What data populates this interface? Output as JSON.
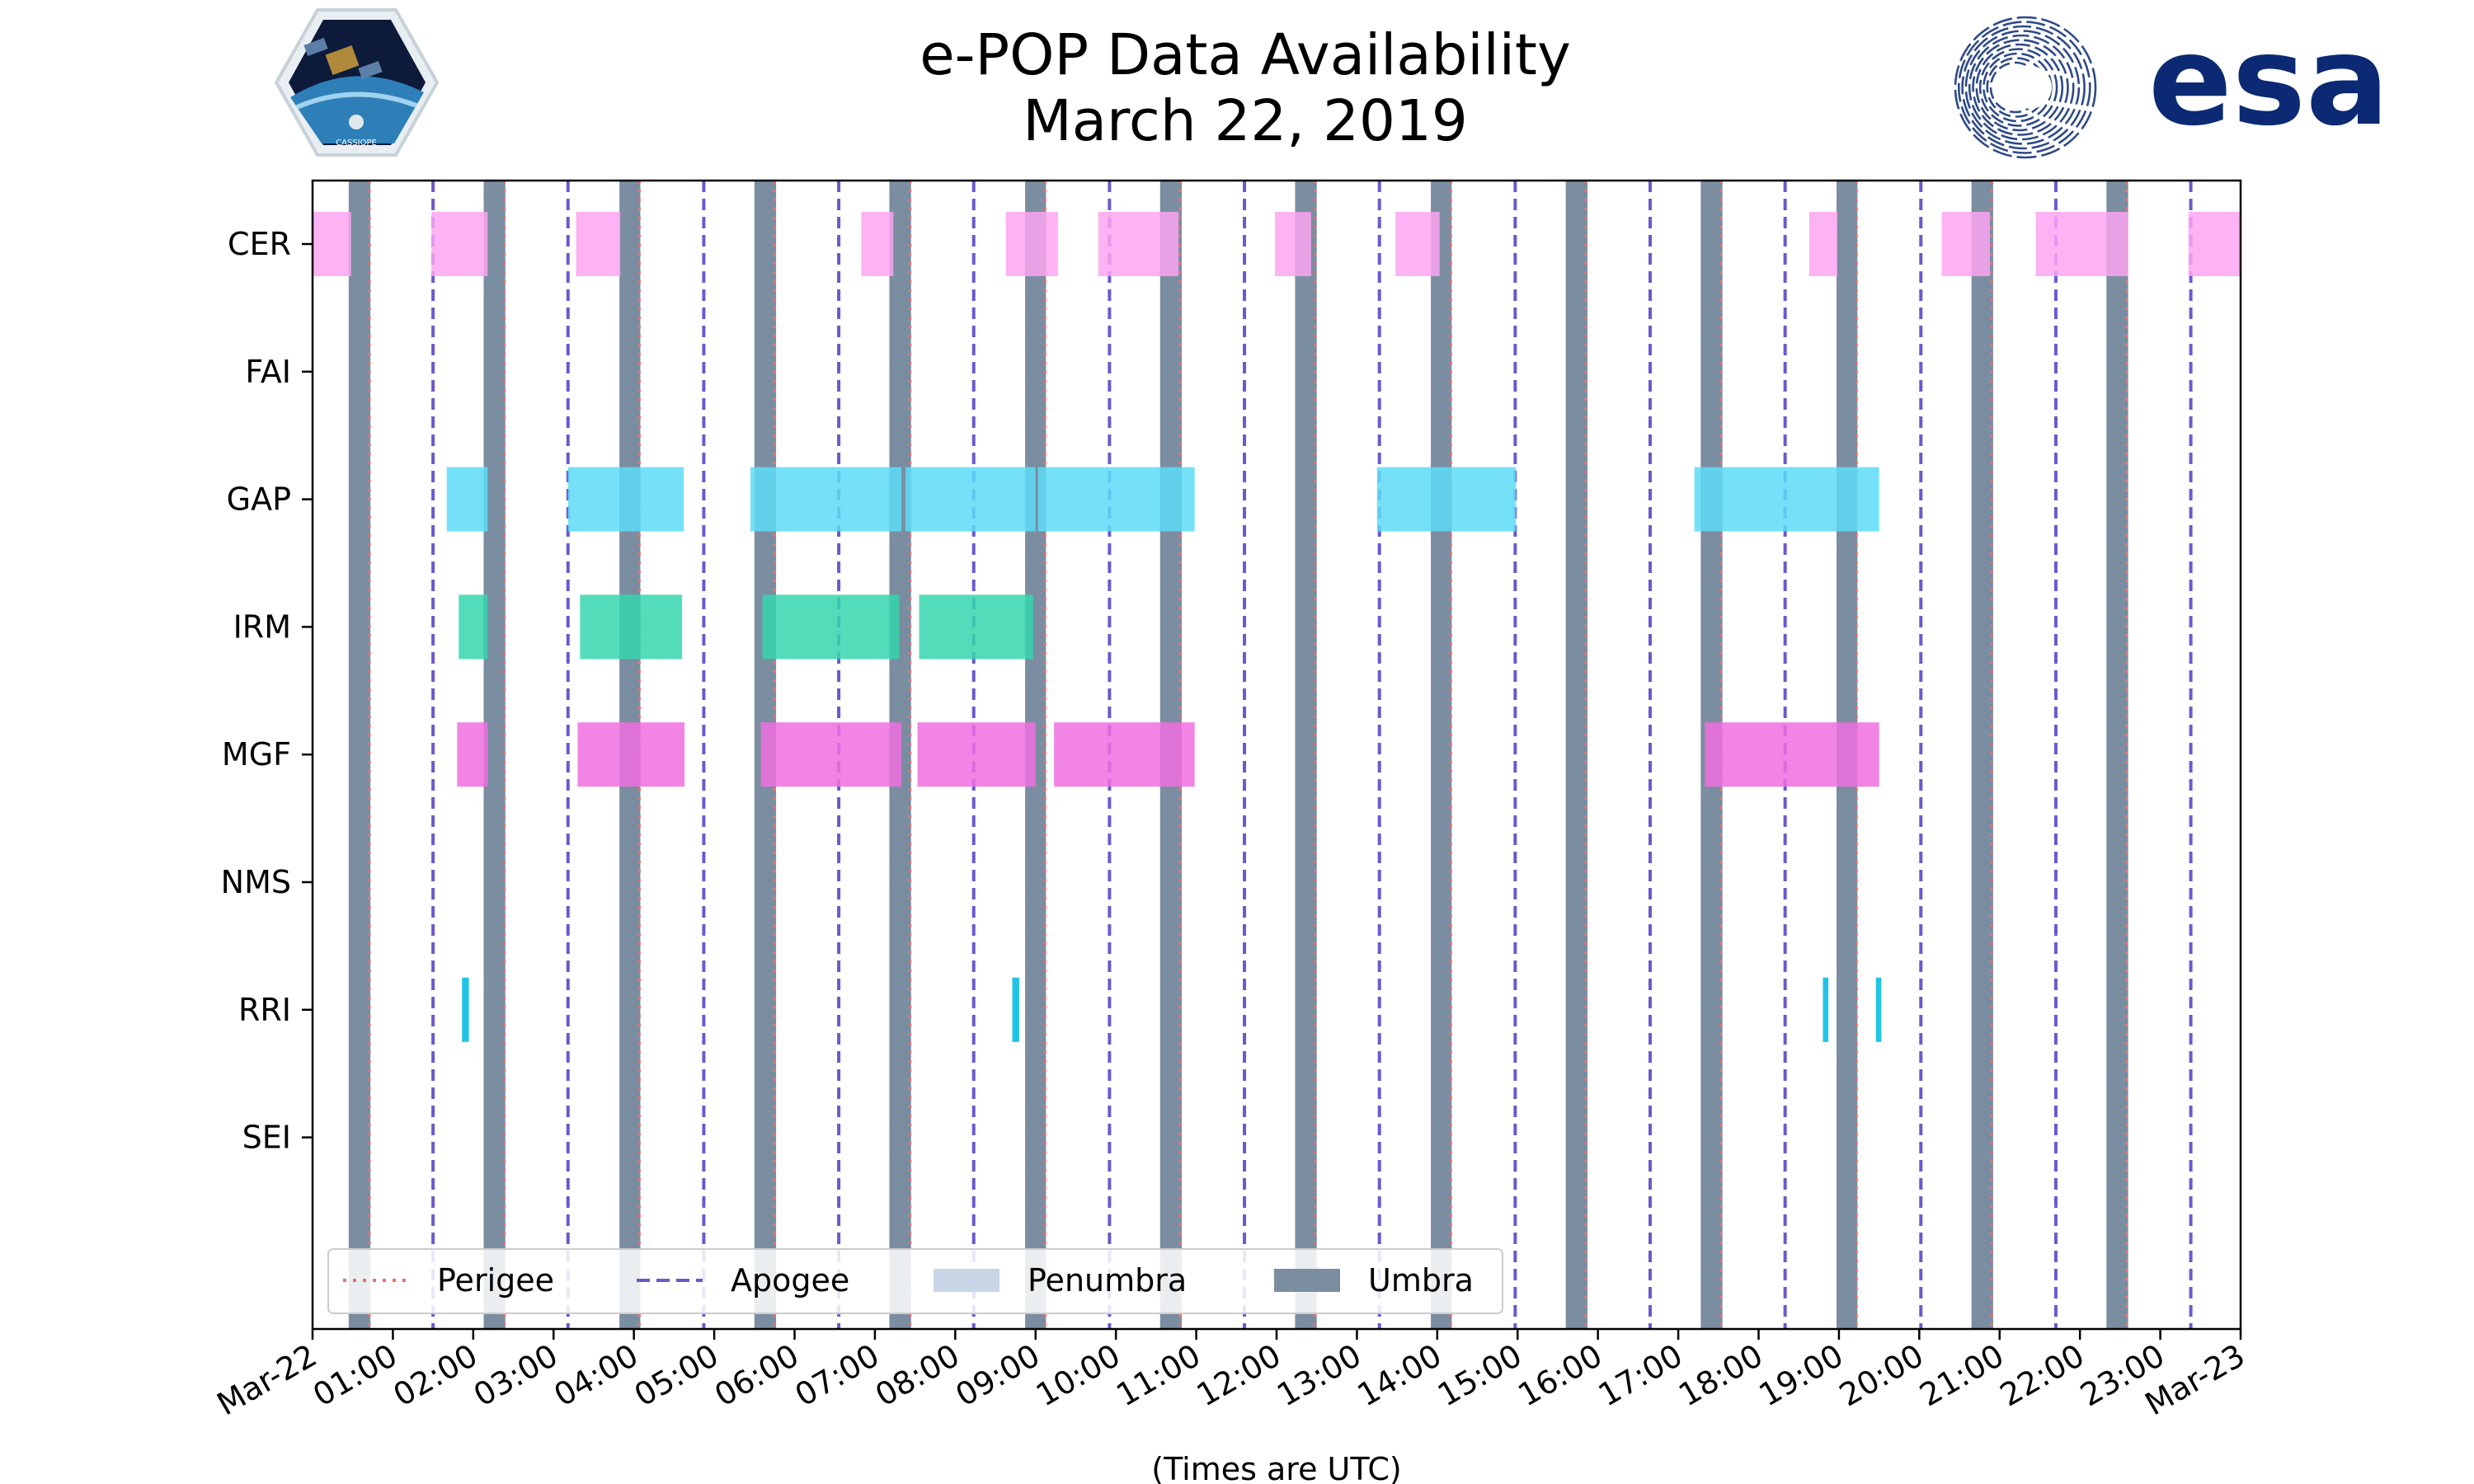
{
  "header": {
    "title_line1": "e-POP Data Availability",
    "title_line2": "March 22, 2019",
    "badge_text": "CASSIOPE",
    "esa_text": "esa"
  },
  "colors": {
    "CER": "#fca5f1",
    "GAP": "#5ddcf7",
    "IRM": "#34d6ae",
    "MGF": "#f06ee0",
    "RRI": "#22c3e6",
    "umbra": "#7b8da0",
    "penumbra": "#c8d6e8",
    "perigee": "#f07070",
    "apogee": "#6a5acd",
    "esa_blue": "#0b2a73"
  },
  "chart_data": {
    "type": "timeline",
    "title": "e-POP Data Availability\nMarch 22, 2019",
    "xlabel": "(Times are UTC)",
    "x_unit": "hours UTC",
    "xlim": [
      0,
      24
    ],
    "x_ticks": [
      {
        "value": 0,
        "label": "Mar-22"
      },
      {
        "value": 1,
        "label": "01:00"
      },
      {
        "value": 2,
        "label": "02:00"
      },
      {
        "value": 3,
        "label": "03:00"
      },
      {
        "value": 4,
        "label": "04:00"
      },
      {
        "value": 5,
        "label": "05:00"
      },
      {
        "value": 6,
        "label": "06:00"
      },
      {
        "value": 7,
        "label": "07:00"
      },
      {
        "value": 8,
        "label": "08:00"
      },
      {
        "value": 9,
        "label": "09:00"
      },
      {
        "value": 10,
        "label": "10:00"
      },
      {
        "value": 11,
        "label": "11:00"
      },
      {
        "value": 12,
        "label": "12:00"
      },
      {
        "value": 13,
        "label": "13:00"
      },
      {
        "value": 14,
        "label": "14:00"
      },
      {
        "value": 15,
        "label": "15:00"
      },
      {
        "value": 16,
        "label": "16:00"
      },
      {
        "value": 17,
        "label": "17:00"
      },
      {
        "value": 18,
        "label": "18:00"
      },
      {
        "value": 19,
        "label": "19:00"
      },
      {
        "value": 20,
        "label": "20:00"
      },
      {
        "value": 21,
        "label": "21:00"
      },
      {
        "value": 22,
        "label": "22:00"
      },
      {
        "value": 23,
        "label": "23:00"
      },
      {
        "value": 24,
        "label": "Mar-23"
      }
    ],
    "categories": [
      "CER",
      "FAI",
      "GAP",
      "IRM",
      "MGF",
      "NMS",
      "RRI",
      "SEI"
    ],
    "series": [
      {
        "name": "CER",
        "intervals": [
          [
            0.0,
            0.48
          ],
          [
            1.48,
            2.18
          ],
          [
            3.28,
            3.83
          ],
          [
            6.83,
            7.23
          ],
          [
            8.63,
            9.28
          ],
          [
            9.78,
            10.78
          ],
          [
            11.98,
            12.43
          ],
          [
            13.48,
            14.03
          ],
          [
            18.63,
            18.98
          ],
          [
            20.28,
            20.88
          ],
          [
            21.45,
            22.6
          ],
          [
            23.35,
            24.0
          ]
        ]
      },
      {
        "name": "FAI",
        "intervals": []
      },
      {
        "name": "GAP",
        "intervals": [
          [
            1.67,
            2.18
          ],
          [
            3.18,
            4.62
          ],
          [
            5.45,
            7.33
          ],
          [
            7.38,
            9.0
          ],
          [
            9.03,
            10.98
          ],
          [
            13.25,
            14.98
          ],
          [
            17.2,
            19.0
          ],
          [
            19.0,
            19.5
          ]
        ]
      },
      {
        "name": "IRM",
        "intervals": [
          [
            1.82,
            2.18
          ],
          [
            3.33,
            4.6
          ],
          [
            5.6,
            7.3
          ],
          [
            7.55,
            8.97
          ]
        ]
      },
      {
        "name": "MGF",
        "intervals": [
          [
            1.8,
            2.18
          ],
          [
            3.3,
            4.63
          ],
          [
            5.58,
            7.33
          ],
          [
            7.53,
            9.0
          ],
          [
            9.23,
            10.98
          ],
          [
            17.33,
            19.0
          ],
          [
            19.0,
            19.5
          ]
        ]
      },
      {
        "name": "NMS",
        "intervals": []
      },
      {
        "name": "RRI",
        "intervals": [
          [
            1.86,
            1.96
          ],
          [
            8.71,
            8.81
          ],
          [
            18.8,
            18.86
          ],
          [
            19.46,
            19.52
          ]
        ]
      },
      {
        "name": "SEI",
        "intervals": []
      }
    ],
    "umbra": [
      [
        0.45,
        0.72
      ],
      [
        2.13,
        2.4
      ],
      [
        3.82,
        4.08
      ],
      [
        5.5,
        5.77
      ],
      [
        7.18,
        7.45
      ],
      [
        8.87,
        9.13
      ],
      [
        10.55,
        10.82
      ],
      [
        12.23,
        12.5
      ],
      [
        13.92,
        14.18
      ],
      [
        15.6,
        15.87
      ],
      [
        17.28,
        17.55
      ],
      [
        18.97,
        19.23
      ],
      [
        20.65,
        20.92
      ],
      [
        22.33,
        22.6
      ]
    ],
    "perigee": [
      0.71,
      2.39,
      4.07,
      5.75,
      7.44,
      9.12,
      10.8,
      12.48,
      14.17,
      15.85,
      17.53,
      19.22,
      20.9,
      22.58
    ],
    "apogee": [
      1.5,
      3.18,
      4.87,
      6.55,
      8.23,
      9.92,
      11.6,
      13.28,
      14.97,
      16.65,
      18.33,
      20.02,
      21.7,
      23.38
    ],
    "legend": {
      "placement": "lower-left",
      "entries": [
        {
          "label": "Perigee",
          "style": "dotted",
          "color": "#f07070"
        },
        {
          "label": "Apogee",
          "style": "dashed",
          "color": "#6a5acd"
        },
        {
          "label": "Penumbra",
          "style": "patch",
          "color": "#c8d6e8"
        },
        {
          "label": "Umbra",
          "style": "patch",
          "color": "#7b8da0"
        }
      ]
    },
    "grid": false
  }
}
